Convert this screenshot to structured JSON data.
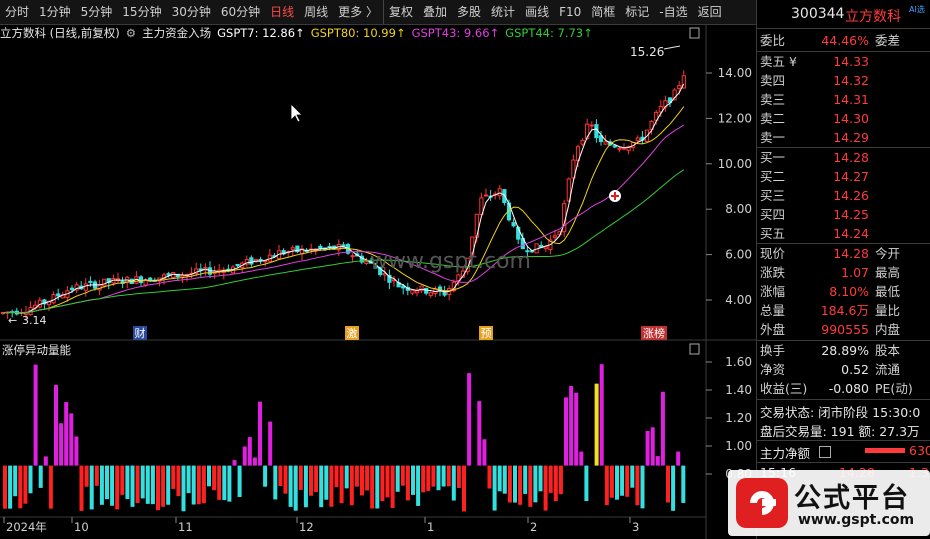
{
  "toolbar": {
    "items": [
      "分时",
      "1分钟",
      "5分钟",
      "15分钟",
      "30分钟",
      "60分钟",
      "日线",
      "周线",
      "更多 〉",
      "复权",
      "叠加",
      "多股",
      "统计",
      "画线",
      "F10",
      "简框",
      "标记",
      "-自选",
      "返回"
    ],
    "active_index": 6
  },
  "legend": {
    "stock": "立方数科 (日线,前复权)",
    "indicator": "主力资金入场",
    "gspt7": "GSPT7: 12.86↑",
    "gspt80": "GSPT80: 10.99↑",
    "gspt43": "GSPT43: 9.66↑",
    "gspt44": "GSPT44: 7.73↑",
    "colors": {
      "gspt7": "#ffffff",
      "gspt80": "#f2d11b",
      "gspt43": "#e040e0",
      "gspt44": "#33cc33"
    }
  },
  "main_chart": {
    "y_ticks": [
      "14.00",
      "12.00",
      "10.00",
      "8.00",
      "6.00",
      "4.00"
    ],
    "high_label": "15.26",
    "low_label": "3.14",
    "event_marks": [
      "财",
      "激",
      "预",
      "涨榜"
    ],
    "watermark": "www.gspt.com"
  },
  "sub_chart": {
    "title": "涨停异动量能",
    "y_ticks": [
      "1.60",
      "1.40",
      "1.20",
      "1.00",
      "0.80"
    ]
  },
  "x_axis": [
    "2024年",
    "10",
    "11",
    "12",
    "1",
    "2",
    "3"
  ],
  "quote": {
    "code": "300344",
    "name": "立方数科",
    "ai_tag": "AI选",
    "weibi_label": "委比",
    "weibi_value": "44.46%",
    "weicha_label": "委差",
    "asks": [
      {
        "label": "卖五 ¥",
        "price": "14.33"
      },
      {
        "label": "卖四",
        "price": "14.32"
      },
      {
        "label": "卖三",
        "price": "14.31"
      },
      {
        "label": "卖二",
        "price": "14.30"
      },
      {
        "label": "卖一",
        "price": "14.29"
      }
    ],
    "bids": [
      {
        "label": "买一",
        "price": "14.28"
      },
      {
        "label": "买二",
        "price": "14.27"
      },
      {
        "label": "买三",
        "price": "14.26"
      },
      {
        "label": "买四",
        "price": "14.25"
      },
      {
        "label": "买五",
        "price": "14.24"
      }
    ],
    "stats": [
      {
        "l": "现价",
        "v": "14.28",
        "r": "今开"
      },
      {
        "l": "涨跌",
        "v": "1.07",
        "r": "最高"
      },
      {
        "l": "涨幅",
        "v": "8.10%",
        "r": "最低"
      },
      {
        "l": "总量",
        "v": "184.6万",
        "r": "量比"
      },
      {
        "l": "外盘",
        "v": "990555",
        "r": "内盘"
      }
    ],
    "stats2": [
      {
        "l": "换手",
        "v": "28.89%",
        "r": "股本"
      },
      {
        "l": "净资",
        "v": "0.52",
        "r": "流通"
      },
      {
        "l": "收益(三)",
        "v": "-0.080",
        "r": "PE(动)"
      }
    ],
    "trade_status": "交易状态: 闭市阶段 15:30:0",
    "after_hours": "盘后交易量: 191  额: 27.3万",
    "net_main": "主力净额",
    "net_main_value": "630",
    "tick_time": "15:16",
    "tick_price": "14.28",
    "tick_vol": "1.3"
  },
  "brand": {
    "name": "公式平台",
    "url": "www.gspt.com"
  }
}
